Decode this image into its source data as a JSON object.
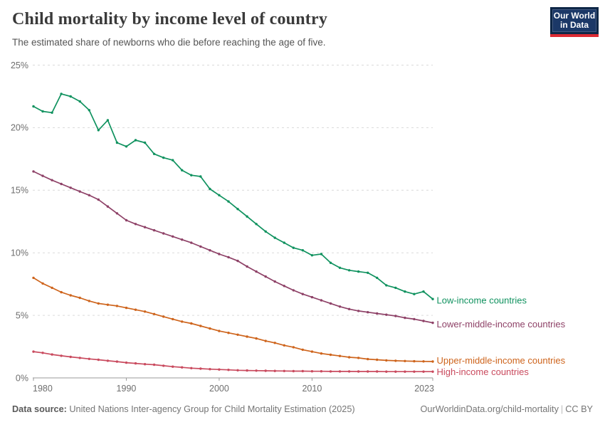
{
  "header": {
    "title": "Child mortality by income level of country",
    "subtitle": "The estimated share of newborns who die before reaching the age of five."
  },
  "logo": {
    "line1": "Our World",
    "line2": "in Data"
  },
  "footer": {
    "source_label": "Data source:",
    "source_text": " United Nations Inter-agency Group for Child Mortality Estimation (2025)",
    "link_text": "OurWorldinData.org/child-mortality",
    "separator": "|",
    "license": "CC BY"
  },
  "chart_data": {
    "type": "line",
    "title": "Child mortality by income level of country",
    "xlabel": "",
    "ylabel": "",
    "grid": "horizontal-dashed",
    "legend_position": "right-of-line-ends",
    "ylim": [
      0,
      25
    ],
    "xlim": [
      1980,
      2023
    ],
    "y_ticks": [
      0,
      5,
      10,
      15,
      20,
      25
    ],
    "y_tick_suffix": "%",
    "x_ticks": [
      1980,
      1990,
      2000,
      2010,
      2023
    ],
    "x": [
      1980,
      1981,
      1982,
      1983,
      1984,
      1985,
      1986,
      1987,
      1988,
      1989,
      1990,
      1991,
      1992,
      1993,
      1994,
      1995,
      1996,
      1997,
      1998,
      1999,
      2000,
      2001,
      2002,
      2003,
      2004,
      2005,
      2006,
      2007,
      2008,
      2009,
      2010,
      2011,
      2012,
      2013,
      2014,
      2015,
      2016,
      2017,
      2018,
      2019,
      2020,
      2021,
      2022,
      2023
    ],
    "series": [
      {
        "name": "Low-income countries",
        "color": "#10925f",
        "label_dy": 3,
        "values": [
          21.7,
          21.3,
          21.2,
          22.7,
          22.5,
          22.1,
          21.4,
          19.8,
          20.6,
          18.8,
          18.5,
          19.0,
          18.8,
          17.9,
          17.6,
          17.4,
          16.6,
          16.2,
          16.1,
          15.1,
          14.6,
          14.1,
          13.5,
          12.9,
          12.3,
          11.7,
          11.2,
          10.8,
          10.4,
          10.2,
          9.8,
          9.9,
          9.2,
          8.8,
          8.6,
          8.5,
          8.4,
          8.0,
          7.4,
          7.2,
          6.9,
          6.7,
          6.9,
          6.3
        ]
      },
      {
        "name": "Lower-middle-income countries",
        "color": "#8e4167",
        "label_dy": 3,
        "values": [
          16.5,
          16.15,
          15.8,
          15.5,
          15.2,
          14.9,
          14.6,
          14.25,
          13.7,
          13.15,
          12.6,
          12.3,
          12.05,
          11.8,
          11.55,
          11.3,
          11.05,
          10.8,
          10.5,
          10.2,
          9.9,
          9.65,
          9.35,
          8.9,
          8.5,
          8.1,
          7.7,
          7.35,
          7.0,
          6.7,
          6.45,
          6.2,
          5.95,
          5.7,
          5.5,
          5.35,
          5.25,
          5.15,
          5.05,
          4.95,
          4.8,
          4.7,
          4.55,
          4.4
        ]
      },
      {
        "name": "Upper-middle-income countries",
        "color": "#ce641c",
        "label_dy": -0.5,
        "values": [
          8.0,
          7.55,
          7.2,
          6.85,
          6.6,
          6.4,
          6.15,
          5.95,
          5.85,
          5.75,
          5.6,
          5.45,
          5.3,
          5.1,
          4.9,
          4.7,
          4.5,
          4.35,
          4.15,
          3.95,
          3.75,
          3.6,
          3.45,
          3.3,
          3.15,
          2.95,
          2.8,
          2.6,
          2.45,
          2.25,
          2.1,
          1.95,
          1.85,
          1.75,
          1.65,
          1.6,
          1.5,
          1.45,
          1.4,
          1.37,
          1.35,
          1.33,
          1.32,
          1.31
        ]
      },
      {
        "name": "High-income countries",
        "color": "#c94a5e",
        "label_dy": 1.5,
        "values": [
          2.1,
          2.0,
          1.87,
          1.77,
          1.68,
          1.6,
          1.52,
          1.45,
          1.37,
          1.3,
          1.22,
          1.16,
          1.1,
          1.05,
          0.97,
          0.9,
          0.84,
          0.78,
          0.74,
          0.7,
          0.67,
          0.64,
          0.61,
          0.59,
          0.58,
          0.57,
          0.56,
          0.55,
          0.54,
          0.54,
          0.53,
          0.53,
          0.52,
          0.52,
          0.52,
          0.51,
          0.51,
          0.51,
          0.5,
          0.5,
          0.5,
          0.5,
          0.5,
          0.5
        ]
      }
    ]
  }
}
